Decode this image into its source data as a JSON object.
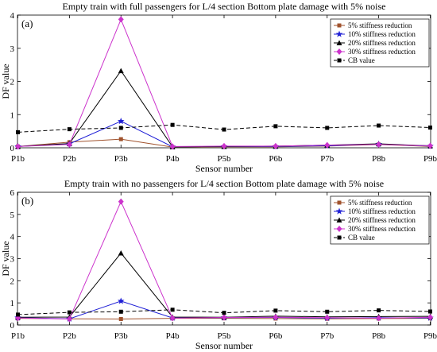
{
  "chart_data": [
    {
      "type": "line",
      "panel_label": "(a)",
      "title": "Empty train with full passengers for L/4 section Bottom plate damage with 5% noise",
      "xlabel": "Sensor number",
      "ylabel": "DF value",
      "categories": [
        "P1b",
        "P2b",
        "P3b",
        "P4b",
        "P5b",
        "P6b",
        "P7b",
        "P8b",
        "P9b"
      ],
      "ylim": [
        0,
        4
      ],
      "yticks": [
        "0",
        "1",
        "2",
        "3",
        "4"
      ],
      "grid": false,
      "legend_position": "top-right",
      "series": [
        {
          "name": "5% stiffness reduction",
          "color": "#a0522d",
          "marker": "square",
          "line_style": "solid",
          "values": [
            0.04,
            0.17,
            0.26,
            0.02,
            0.03,
            0.03,
            0.05,
            0.1,
            0.04
          ]
        },
        {
          "name": "10% stiffness reduction",
          "color": "#1f1fd6",
          "marker": "star",
          "line_style": "solid",
          "values": [
            0.04,
            0.12,
            0.8,
            0.03,
            0.04,
            0.04,
            0.06,
            0.11,
            0.05
          ]
        },
        {
          "name": "20% stiffness reduction",
          "color": "#000000",
          "marker": "triangle",
          "line_style": "solid",
          "values": [
            0.04,
            0.13,
            2.32,
            0.03,
            0.04,
            0.05,
            0.08,
            0.12,
            0.06
          ]
        },
        {
          "name": "30% stiffness reduction",
          "color": "#cc33cc",
          "marker": "diamond",
          "line_style": "solid",
          "values": [
            0.04,
            0.1,
            3.87,
            0.04,
            0.05,
            0.05,
            0.08,
            0.1,
            0.06
          ]
        },
        {
          "name": "CB value",
          "color": "#000000",
          "marker": "square",
          "line_style": "dashed",
          "values": [
            0.47,
            0.56,
            0.6,
            0.69,
            0.55,
            0.65,
            0.6,
            0.67,
            0.61
          ]
        }
      ]
    },
    {
      "type": "line",
      "panel_label": "(b)",
      "title": "Empty train with no passengers for L/4 section Bottom plate damage with 5% noise",
      "xlabel": "Sensor number",
      "ylabel": "DF value",
      "categories": [
        "P1b",
        "P2b",
        "P3b",
        "P4b",
        "P5b",
        "P6b",
        "P7b",
        "P8b",
        "P9b"
      ],
      "ylim": [
        0,
        6
      ],
      "yticks": [
        "0",
        "1",
        "2",
        "3",
        "4",
        "5",
        "6"
      ],
      "grid": false,
      "legend_position": "top-right",
      "series": [
        {
          "name": "5% stiffness reduction",
          "color": "#a0522d",
          "marker": "square",
          "line_style": "solid",
          "values": [
            0.3,
            0.28,
            0.27,
            0.3,
            0.3,
            0.29,
            0.28,
            0.29,
            0.3
          ]
        },
        {
          "name": "10% stiffness reduction",
          "color": "#1f1fd6",
          "marker": "star",
          "line_style": "solid",
          "values": [
            0.33,
            0.28,
            1.08,
            0.32,
            0.33,
            0.34,
            0.31,
            0.33,
            0.32
          ]
        },
        {
          "name": "20% stiffness reduction",
          "color": "#000000",
          "marker": "triangle",
          "line_style": "solid",
          "values": [
            0.35,
            0.36,
            3.25,
            0.36,
            0.35,
            0.4,
            0.37,
            0.38,
            0.39
          ]
        },
        {
          "name": "30% stiffness reduction",
          "color": "#cc33cc",
          "marker": "diamond",
          "line_style": "solid",
          "values": [
            0.32,
            0.27,
            5.58,
            0.31,
            0.34,
            0.35,
            0.33,
            0.31,
            0.35
          ]
        },
        {
          "name": "CB value",
          "color": "#000000",
          "marker": "square",
          "line_style": "dashed",
          "values": [
            0.47,
            0.57,
            0.6,
            0.69,
            0.55,
            0.65,
            0.6,
            0.66,
            0.61
          ]
        }
      ]
    }
  ]
}
